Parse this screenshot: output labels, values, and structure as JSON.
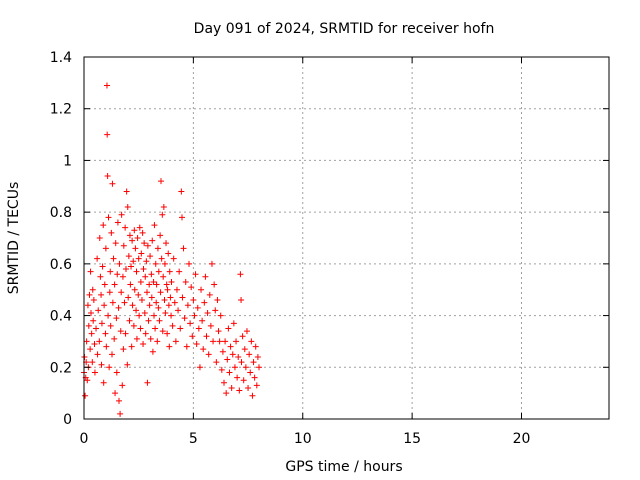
{
  "chart_data": {
    "type": "scatter",
    "title": "Day 091 of 2024, SRMTID for receiver hofn",
    "xlabel": "GPS time / hours",
    "ylabel": "SRMTID / TECUs",
    "xlim": [
      0,
      24
    ],
    "ylim": [
      0,
      1.4
    ],
    "xticks": [
      0,
      5,
      10,
      15,
      20
    ],
    "xtick_labels": [
      "0",
      "5",
      "10",
      "15",
      "20"
    ],
    "yticks": [
      0,
      0.2,
      0.4,
      0.6,
      0.8,
      1,
      1.2,
      1.4
    ],
    "ytick_labels": [
      "0",
      "0.2",
      "0.4",
      "0.6",
      "0.8",
      "1",
      "1.2",
      "1.4"
    ],
    "grid": true,
    "marker": "+",
    "color": "#ff0000",
    "series": [
      {
        "name": "SRMTID",
        "points": [
          [
            0.0,
            0.18
          ],
          [
            0.02,
            0.24
          ],
          [
            0.05,
            0.09
          ],
          [
            0.08,
            0.16
          ],
          [
            0.1,
            0.22
          ],
          [
            0.12,
            0.3
          ],
          [
            0.15,
            0.15
          ],
          [
            0.18,
            0.44
          ],
          [
            0.2,
            0.2
          ],
          [
            0.22,
            0.36
          ],
          [
            0.25,
            0.48
          ],
          [
            0.28,
            0.27
          ],
          [
            0.3,
            0.57
          ],
          [
            0.32,
            0.41
          ],
          [
            0.35,
            0.33
          ],
          [
            0.38,
            0.22
          ],
          [
            0.4,
            0.5
          ],
          [
            0.42,
            0.38
          ],
          [
            0.45,
            0.46
          ],
          [
            0.48,
            0.29
          ],
          [
            0.5,
            0.18
          ],
          [
            0.55,
            0.35
          ],
          [
            0.6,
            0.62
          ],
          [
            0.62,
            0.25
          ],
          [
            0.65,
            0.42
          ],
          [
            0.7,
            0.3
          ],
          [
            0.72,
            0.7
          ],
          [
            0.75,
            0.55
          ],
          [
            0.78,
            0.48
          ],
          [
            0.8,
            0.21
          ],
          [
            0.82,
            0.37
          ],
          [
            0.85,
            0.59
          ],
          [
            0.88,
            0.75
          ],
          [
            0.9,
            0.14
          ],
          [
            0.92,
            0.44
          ],
          [
            0.95,
            0.52
          ],
          [
            0.98,
            0.33
          ],
          [
            1.0,
            0.66
          ],
          [
            1.02,
            0.28
          ],
          [
            1.05,
            1.29
          ],
          [
            1.06,
            1.1
          ],
          [
            1.08,
            0.94
          ],
          [
            1.1,
            0.4
          ],
          [
            1.12,
            0.78
          ],
          [
            1.15,
            0.2
          ],
          [
            1.18,
            0.49
          ],
          [
            1.2,
            0.57
          ],
          [
            1.22,
            0.36
          ],
          [
            1.25,
            0.72
          ],
          [
            1.28,
            0.25
          ],
          [
            1.3,
            0.91
          ],
          [
            1.32,
            0.45
          ],
          [
            1.35,
            0.62
          ],
          [
            1.38,
            0.31
          ],
          [
            1.4,
            0.52
          ],
          [
            1.42,
            0.1
          ],
          [
            1.45,
            0.68
          ],
          [
            1.48,
            0.39
          ],
          [
            1.5,
            0.18
          ],
          [
            1.52,
            0.56
          ],
          [
            1.55,
            0.76
          ],
          [
            1.58,
            0.43
          ],
          [
            1.6,
            0.07
          ],
          [
            1.62,
            0.6
          ],
          [
            1.65,
            0.02
          ],
          [
            1.68,
            0.34
          ],
          [
            1.7,
            0.49
          ],
          [
            1.72,
            0.79
          ],
          [
            1.75,
            0.13
          ],
          [
            1.78,
            0.55
          ],
          [
            1.8,
            0.27
          ],
          [
            1.82,
            0.67
          ],
          [
            1.85,
            0.45
          ],
          [
            1.88,
            0.74
          ],
          [
            1.9,
            0.33
          ],
          [
            1.92,
            0.58
          ],
          [
            1.95,
            0.88
          ],
          [
            1.98,
            0.21
          ],
          [
            2.0,
            0.82
          ],
          [
            2.02,
            0.47
          ],
          [
            2.05,
            0.63
          ],
          [
            2.08,
            0.38
          ],
          [
            2.1,
            0.71
          ],
          [
            2.12,
            0.52
          ],
          [
            2.15,
            0.59
          ],
          [
            2.18,
            0.28
          ],
          [
            2.2,
            0.69
          ],
          [
            2.22,
            0.44
          ],
          [
            2.25,
            0.61
          ],
          [
            2.28,
            0.36
          ],
          [
            2.3,
            0.73
          ],
          [
            2.32,
            0.5
          ],
          [
            2.35,
            0.66
          ],
          [
            2.38,
            0.42
          ],
          [
            2.4,
            0.57
          ],
          [
            2.42,
            0.31
          ],
          [
            2.45,
            0.7
          ],
          [
            2.48,
            0.48
          ],
          [
            2.5,
            0.62
          ],
          [
            2.52,
            0.4
          ],
          [
            2.55,
            0.74
          ],
          [
            2.58,
            0.35
          ],
          [
            2.6,
            0.53
          ],
          [
            2.62,
            0.64
          ],
          [
            2.65,
            0.46
          ],
          [
            2.68,
            0.72
          ],
          [
            2.7,
            0.29
          ],
          [
            2.72,
            0.58
          ],
          [
            2.75,
            0.68
          ],
          [
            2.78,
            0.41
          ],
          [
            2.8,
            0.55
          ],
          [
            2.82,
            0.33
          ],
          [
            2.85,
            0.61
          ],
          [
            2.88,
            0.49
          ],
          [
            2.9,
            0.14
          ],
          [
            2.92,
            0.67
          ],
          [
            2.95,
            0.38
          ],
          [
            2.98,
            0.52
          ],
          [
            3.0,
            0.44
          ],
          [
            3.02,
            0.63
          ],
          [
            3.05,
            0.31
          ],
          [
            3.08,
            0.56
          ],
          [
            3.1,
            0.47
          ],
          [
            3.12,
            0.69
          ],
          [
            3.15,
            0.26
          ],
          [
            3.18,
            0.53
          ],
          [
            3.2,
            0.4
          ],
          [
            3.22,
            0.75
          ],
          [
            3.25,
            0.35
          ],
          [
            3.28,
            0.6
          ],
          [
            3.3,
            0.45
          ],
          [
            3.32,
            0.52
          ],
          [
            3.35,
            0.3
          ],
          [
            3.38,
            0.66
          ],
          [
            3.4,
            0.43
          ],
          [
            3.42,
            0.57
          ],
          [
            3.45,
            0.38
          ],
          [
            3.48,
            0.71
          ],
          [
            3.5,
            0.49
          ],
          [
            3.52,
            0.92
          ],
          [
            3.55,
            0.62
          ],
          [
            3.58,
            0.79
          ],
          [
            3.6,
            0.34
          ],
          [
            3.62,
            0.55
          ],
          [
            3.65,
            0.82
          ],
          [
            3.68,
            0.46
          ],
          [
            3.7,
            0.6
          ],
          [
            3.72,
            0.41
          ],
          [
            3.75,
            0.68
          ],
          [
            3.78,
            0.52
          ],
          [
            3.8,
            0.33
          ],
          [
            3.82,
            0.5
          ],
          [
            3.85,
            0.64
          ],
          [
            3.88,
            0.44
          ],
          [
            3.9,
            0.28
          ],
          [
            3.92,
            0.57
          ],
          [
            3.95,
            0.47
          ],
          [
            3.98,
            0.4
          ],
          [
            4.0,
            0.53
          ],
          [
            4.05,
            0.36
          ],
          [
            4.1,
            0.62
          ],
          [
            4.15,
            0.45
          ],
          [
            4.2,
            0.3
          ],
          [
            4.25,
            0.5
          ],
          [
            4.3,
            0.42
          ],
          [
            4.35,
            0.57
          ],
          [
            4.4,
            0.35
          ],
          [
            4.45,
            0.88
          ],
          [
            4.48,
            0.78
          ],
          [
            4.5,
            0.47
          ],
          [
            4.55,
            0.66
          ],
          [
            4.6,
            0.39
          ],
          [
            4.65,
            0.53
          ],
          [
            4.7,
            0.28
          ],
          [
            4.75,
            0.44
          ],
          [
            4.8,
            0.6
          ],
          [
            4.85,
            0.37
          ],
          [
            4.9,
            0.51
          ],
          [
            4.95,
            0.32
          ],
          [
            5.0,
            0.46
          ],
          [
            5.05,
            0.4
          ],
          [
            5.1,
            0.56
          ],
          [
            5.15,
            0.29
          ],
          [
            5.2,
            0.43
          ],
          [
            5.25,
            0.35
          ],
          [
            5.3,
            0.2
          ],
          [
            5.35,
            0.5
          ],
          [
            5.4,
            0.38
          ],
          [
            5.45,
            0.27
          ],
          [
            5.5,
            0.45
          ],
          [
            5.55,
            0.55
          ],
          [
            5.6,
            0.32
          ],
          [
            5.65,
            0.41
          ],
          [
            5.7,
            0.25
          ],
          [
            5.75,
            0.48
          ],
          [
            5.8,
            0.36
          ],
          [
            5.85,
            0.6
          ],
          [
            5.9,
            0.3
          ],
          [
            5.95,
            0.52
          ],
          [
            6.0,
            0.42
          ],
          [
            6.05,
            0.22
          ],
          [
            6.1,
            0.46
          ],
          [
            6.15,
            0.34
          ],
          [
            6.2,
            0.3
          ],
          [
            6.25,
            0.4
          ],
          [
            6.3,
            0.19
          ],
          [
            6.35,
            0.26
          ],
          [
            6.4,
            0.14
          ],
          [
            6.45,
            0.3
          ],
          [
            6.5,
            0.1
          ],
          [
            6.55,
            0.23
          ],
          [
            6.6,
            0.35
          ],
          [
            6.65,
            0.18
          ],
          [
            6.7,
            0.28
          ],
          [
            6.75,
            0.12
          ],
          [
            6.8,
            0.25
          ],
          [
            6.85,
            0.37
          ],
          [
            6.9,
            0.2
          ],
          [
            6.95,
            0.3
          ],
          [
            7.0,
            0.16
          ],
          [
            7.05,
            0.24
          ],
          [
            7.1,
            0.11
          ],
          [
            7.15,
            0.56
          ],
          [
            7.18,
            0.46
          ],
          [
            7.2,
            0.22
          ],
          [
            7.25,
            0.32
          ],
          [
            7.3,
            0.15
          ],
          [
            7.35,
            0.27
          ],
          [
            7.4,
            0.2
          ],
          [
            7.45,
            0.34
          ],
          [
            7.5,
            0.12
          ],
          [
            7.55,
            0.25
          ],
          [
            7.6,
            0.18
          ],
          [
            7.65,
            0.3
          ],
          [
            7.7,
            0.09
          ],
          [
            7.75,
            0.22
          ],
          [
            7.8,
            0.16
          ],
          [
            7.85,
            0.28
          ],
          [
            7.9,
            0.13
          ],
          [
            7.95,
            0.24
          ],
          [
            8.0,
            0.2
          ]
        ]
      }
    ]
  }
}
